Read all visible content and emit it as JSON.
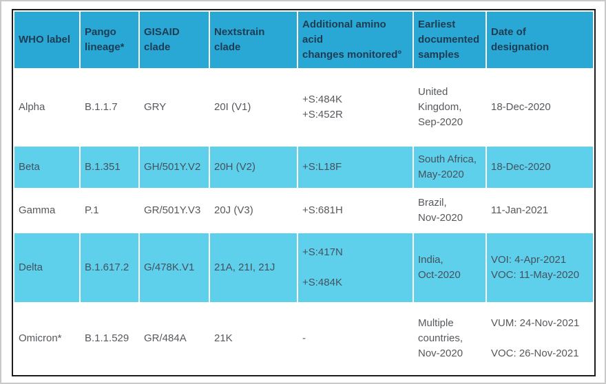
{
  "page": {
    "background": "#ffffff",
    "frame_border_color": "#c9c9c9"
  },
  "colors": {
    "header_bg": "#29a8d6",
    "header_text": "#1e3c52",
    "stripe_bg": "#5fd0ec",
    "stripe_text": "#44515c",
    "body_text": "#55585c",
    "table_border": "#1c1c1c",
    "gridline": "#ffffff"
  },
  "table": {
    "columns": [
      {
        "id": "who-label",
        "label": "WHO label"
      },
      {
        "id": "pango-lineage",
        "label": "Pango\nlineage*"
      },
      {
        "id": "gisaid-clade",
        "label": "GISAID\nclade"
      },
      {
        "id": "nextstrain-clade",
        "label": "Nextstrain clade"
      },
      {
        "id": "amino-acid-changes",
        "label": "Additional amino acid\nchanges monitored°"
      },
      {
        "id": "earliest-samples",
        "label": "Earliest\ndocumented\nsamples"
      },
      {
        "id": "date-of-designation",
        "label": "Date of\ndesignation"
      }
    ],
    "rows": [
      {
        "id": "alpha",
        "cells": [
          "Alpha",
          "B.1.1.7",
          "GRY",
          "20I (V1)",
          "+S:484K\n+S:452R",
          "United Kingdom,\nSep-2020",
          "18-Dec-2020"
        ]
      },
      {
        "id": "beta",
        "cells": [
          "Beta",
          "B.1.351",
          "GH/501Y.V2",
          "20H (V2)",
          "+S:L18F",
          "South Africa,\nMay-2020",
          "18-Dec-2020"
        ]
      },
      {
        "id": "gamma",
        "cells": [
          "Gamma",
          "P.1",
          "GR/501Y.V3",
          "20J (V3)",
          "+S:681H",
          "Brazil,\nNov-2020",
          "11-Jan-2021"
        ]
      },
      {
        "id": "delta",
        "cells": [
          "Delta",
          "B.1.617.2",
          "G/478K.V1",
          "21A, 21I, 21J",
          "+S:417N\n\n+S:484K",
          "India,\nOct-2020",
          "VOI: 4-Apr-2021\nVOC: 11-May-2020"
        ]
      },
      {
        "id": "omicron",
        "cells": [
          "Omicron*",
          "B.1.1.529",
          "GR/484A",
          "21K",
          "-",
          "Multiple countries,\nNov-2020",
          "VUM: 24-Nov-2021\n\nVOC: 26-Nov-2021"
        ]
      }
    ]
  }
}
